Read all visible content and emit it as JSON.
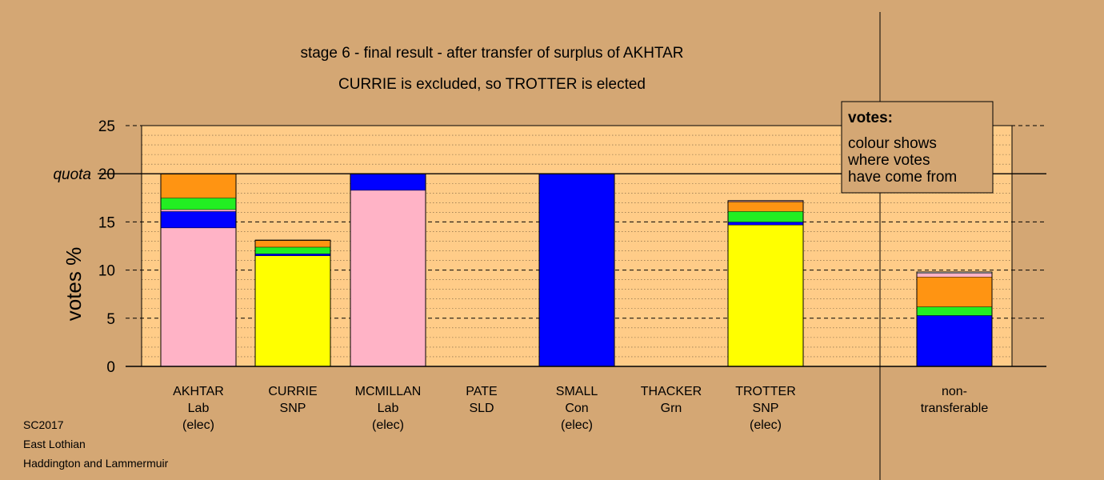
{
  "chart_data": {
    "type": "bar",
    "stacked": true,
    "title": "stage 6 - final result - after transfer of surplus of AKHTAR",
    "subtitle": "CURRIE is excluded, so TROTTER is elected",
    "ylabel": "votes %",
    "ylim": [
      0,
      25
    ],
    "yticks": [
      "0",
      "5",
      "10",
      "15",
      "20",
      "25"
    ],
    "quota": {
      "label": "quota",
      "value": 20
    },
    "categories": [
      {
        "lines": [
          "AKHTAR",
          "Lab",
          "(elec)"
        ]
      },
      {
        "lines": [
          "CURRIE",
          "SNP"
        ]
      },
      {
        "lines": [
          "MCMILLAN",
          "Lab",
          "(elec)"
        ]
      },
      {
        "lines": [
          "PATE",
          "SLD"
        ]
      },
      {
        "lines": [
          "SMALL",
          "Con",
          "(elec)"
        ]
      },
      {
        "lines": [
          "THACKER",
          "Grn"
        ]
      },
      {
        "lines": [
          "TROTTER",
          "SNP",
          "(elec)"
        ]
      },
      {
        "lines": [
          "non-",
          "transferable"
        ]
      }
    ],
    "bar_segments": [
      [
        {
          "color": "#ffb3c6",
          "value": 14.4
        },
        {
          "color": "#0000ff",
          "value": 1.7
        },
        {
          "color": "#ffb3c6",
          "value": 0.2
        },
        {
          "color": "#22ee22",
          "value": 1.2
        },
        {
          "color": "#ff9412",
          "value": 2.5
        }
      ],
      [
        {
          "color": "#ffff00",
          "value": 11.5
        },
        {
          "color": "#0000ff",
          "value": 0.2
        },
        {
          "color": "#22ee22",
          "value": 0.7
        },
        {
          "color": "#ff9412",
          "value": 0.7
        }
      ],
      [
        {
          "color": "#ffb3c6",
          "value": 18.3
        },
        {
          "color": "#0000ff",
          "value": 1.7
        }
      ],
      [],
      [
        {
          "color": "#0000ff",
          "value": 20.0
        }
      ],
      [],
      [
        {
          "color": "#ffff00",
          "value": 14.7
        },
        {
          "color": "#0000ff",
          "value": 0.3
        },
        {
          "color": "#22ee22",
          "value": 1.1
        },
        {
          "color": "#ff9412",
          "value": 1.0
        },
        {
          "color": "#ffb3c6",
          "value": 0.1
        }
      ],
      [
        {
          "color": "#0000ff",
          "value": 5.3
        },
        {
          "color": "#22ee22",
          "value": 0.9
        },
        {
          "color": "#ff9412",
          "value": 3.1
        },
        {
          "color": "#ffb3c6",
          "value": 0.4
        },
        {
          "color": "#ffffff",
          "value": 0.1
        }
      ]
    ],
    "legend": {
      "title": "votes:",
      "lines": [
        "colour shows",
        "where votes",
        "have come from"
      ]
    },
    "grid": true
  },
  "footer": [
    "SC2017",
    "East Lothian",
    "Haddington and Lammermuir"
  ],
  "colors": {
    "background": "#d4a774",
    "plot_background": "#ffcc88"
  }
}
